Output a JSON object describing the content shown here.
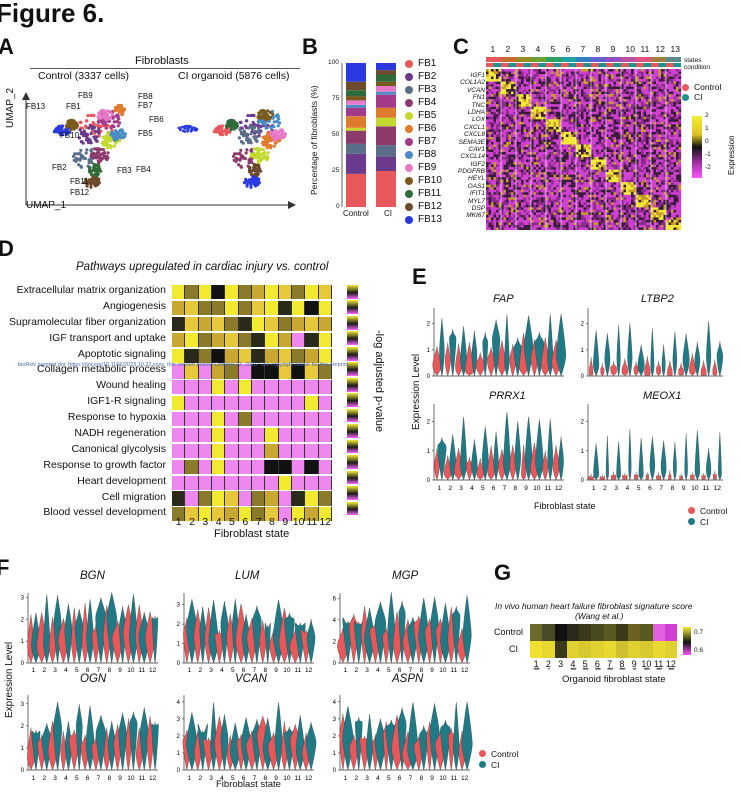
{
  "figure": {
    "title": "Figure 6."
  },
  "panels": {
    "A": {
      "label": "A",
      "title": "Fibroblasts",
      "control_title": "Control (3337 cells)",
      "ci_title": "CI organoid (5876 cells)",
      "x_axis": "UMAP_1",
      "y_axis": "UMAP_2",
      "cluster_labels": [
        "FB13",
        "FB9",
        "FB8",
        "FB1",
        "FB7",
        "FB10",
        "FB6",
        "FB5",
        "FB2",
        "FB3",
        "FB4",
        "FB11",
        "FB12"
      ]
    },
    "B": {
      "label": "B",
      "y_axis": "Percentage of fibroblasts (%)",
      "y_ticks": [
        "100",
        "75",
        "50",
        "25",
        "0"
      ],
      "legend": [
        {
          "name": "FB1",
          "color": "#e8585b"
        },
        {
          "name": "FB2",
          "color": "#6b3a8c"
        },
        {
          "name": "FB3",
          "color": "#5a6e8a"
        },
        {
          "name": "FB4",
          "color": "#8b3a6a"
        },
        {
          "name": "FB5",
          "color": "#c3d92f"
        },
        {
          "name": "FB6",
          "color": "#e07a2c"
        },
        {
          "name": "FB7",
          "color": "#a33a8a"
        },
        {
          "name": "FB8",
          "color": "#4a8bc8"
        },
        {
          "name": "FB9",
          "color": "#e879c8"
        },
        {
          "name": "FB10",
          "color": "#7a5a1c"
        },
        {
          "name": "FB11",
          "color": "#2f6a3a"
        },
        {
          "name": "FB12",
          "color": "#6c4a2a"
        },
        {
          "name": "FB13",
          "color": "#2b3ae0"
        }
      ]
    },
    "C": {
      "label": "C",
      "states": [
        "1",
        "2",
        "3",
        "4",
        "5",
        "6",
        "7",
        "8",
        "9",
        "10",
        "11",
        "12",
        "13"
      ],
      "row_labels": [
        "states",
        "condition"
      ],
      "genes": [
        "IGF1",
        "COL1A2",
        "VCAN",
        "FN1",
        "TNC",
        "LDHA",
        "LOX",
        "CXCL1",
        "CXCL8",
        "SEMA3E",
        "CAV1",
        "CXCL14",
        "IGF2",
        "PDGFRB",
        "HEYL",
        "OAS1",
        "IFIT1",
        "MYL7",
        "DSP",
        "MKI67"
      ],
      "legend_title": "Expression",
      "legend_ticks": [
        "2",
        "1",
        "0",
        "-1",
        "-2"
      ],
      "condition_legend": [
        {
          "name": "Control",
          "color": "#e8585b"
        },
        {
          "name": "CI",
          "color": "#1f8f8f"
        }
      ]
    },
    "D": {
      "label": "D",
      "title": "Pathways upregulated in cardiac injury vs. control",
      "pathways": [
        "Extracellular matrix organization",
        "Angiogenesis",
        "Supramolecular fiber organization",
        "IGF transport and uptake",
        "Apoptotic signaling",
        "Collagen metabolic process",
        "Wound healing",
        "IGF1-R signaling",
        "Response to hypoxia",
        "NADH regeneration",
        "Canonical glycolysis",
        "Response to growth factor",
        "Heart development",
        "Cell migration",
        "Blood vessel development"
      ],
      "x_ticks": [
        "1",
        "2",
        "3",
        "4",
        "5",
        "6",
        "7",
        "8",
        "9",
        "10",
        "11",
        "12"
      ],
      "x_axis": "Fibroblast state",
      "legend_title": "-log adjusted p-value"
    },
    "E": {
      "label": "E",
      "genes": [
        "FAP",
        "LTBP2",
        "PRRX1",
        "MEOX1"
      ],
      "y_axis": "Expression Level",
      "x_axis": "Fibroblast state",
      "x_ticks": [
        "1",
        "2",
        "3",
        "4",
        "5",
        "6",
        "7",
        "8",
        "9",
        "10",
        "11",
        "12"
      ],
      "legend": [
        {
          "name": "Control",
          "color": "#e8585b"
        },
        {
          "name": "CI",
          "color": "#1f7a86"
        }
      ]
    },
    "F": {
      "label": "F",
      "genes": [
        "BGN",
        "LUM",
        "MGP",
        "OGN",
        "VCAN",
        "ASPN"
      ],
      "y_axis": "Expression Level",
      "x_axis": "Fibroblast state",
      "x_ticks": [
        "1",
        "2",
        "3",
        "4",
        "5",
        "6",
        "7",
        "8",
        "9",
        "10",
        "11",
        "12"
      ],
      "legend": [
        {
          "name": "Control",
          "color": "#e8585b"
        },
        {
          "name": "CI",
          "color": "#1f7a86"
        }
      ]
    },
    "G": {
      "label": "G",
      "title_line1": "In vivo human heart failure fibroblast signature score",
      "title_line2": "(Wang et al.)",
      "rows": [
        "Control",
        "CI"
      ],
      "x_ticks": [
        "1",
        "2",
        "3",
        "4",
        "5",
        "6",
        "7",
        "8",
        "9",
        "10",
        "11",
        "12"
      ],
      "significance": [
        "****",
        "*",
        "",
        "****",
        "****",
        "****",
        "****",
        "****",
        "**",
        "****",
        "****",
        "****"
      ],
      "x_axis": "Organoid fibroblast state",
      "legend_ticks": [
        "0.7",
        "0.6"
      ]
    }
  },
  "watermark": "bioRxiv preprint doi: https://doi.org/10.1101/2023.10.22.xxxx; this version posted October 23, 2023. The copyright holder for this preprint (which was not certified by peer review) is the author/funder. All rights reserved. No reuse allowed without permission."
}
